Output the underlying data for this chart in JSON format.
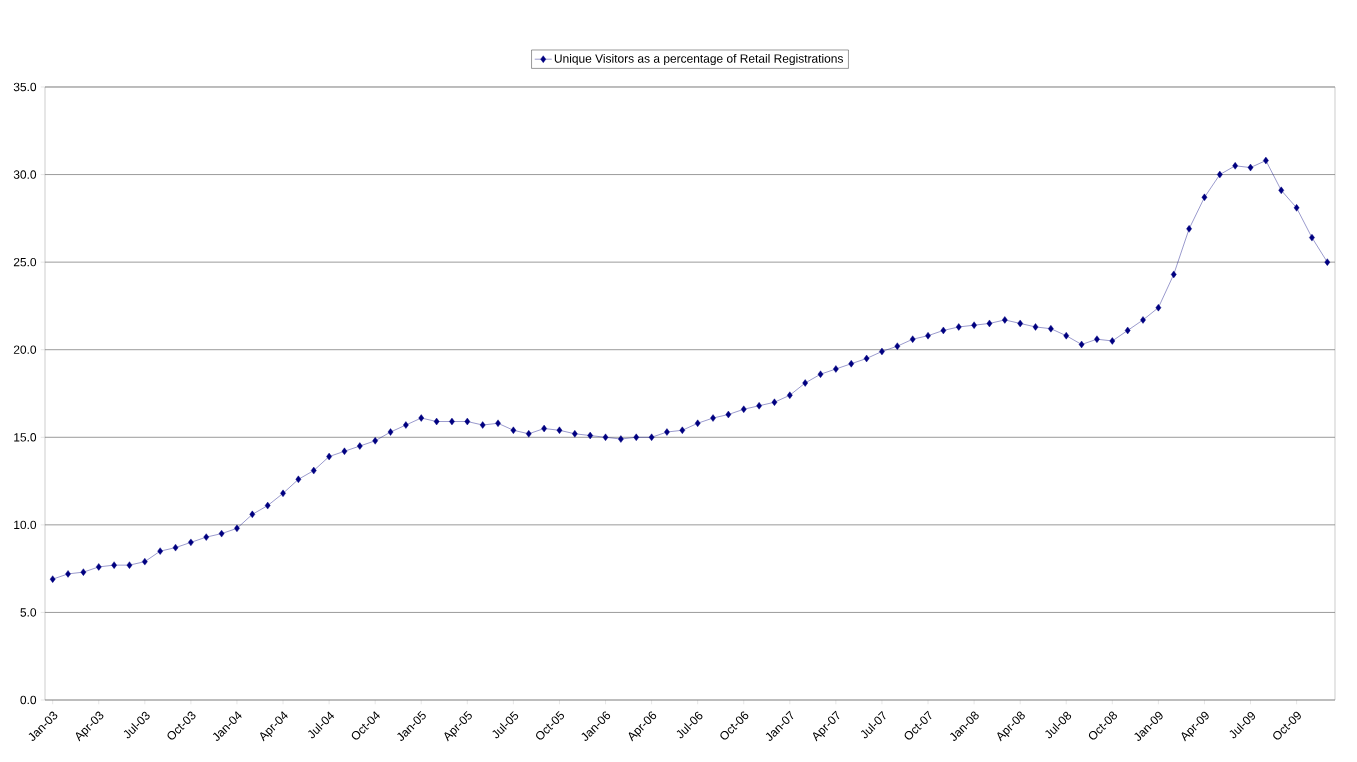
{
  "chart_data": {
    "type": "line",
    "categories": [
      "Jan-03",
      null,
      null,
      "Apr-03",
      null,
      null,
      "Jul-03",
      null,
      null,
      "Oct-03",
      null,
      null,
      "Jan-04",
      null,
      null,
      "Apr-04",
      null,
      null,
      "Jul-04",
      null,
      null,
      "Oct-04",
      null,
      null,
      "Jan-05",
      null,
      null,
      "Apr-05",
      null,
      null,
      "Jul-05",
      null,
      null,
      "Oct-05",
      null,
      null,
      "Jan-06",
      null,
      null,
      "Apr-06",
      null,
      null,
      "Jul-06",
      null,
      null,
      "Oct-06",
      null,
      null,
      "Jan-07",
      null,
      null,
      "Apr-07",
      null,
      null,
      "Jul-07",
      null,
      null,
      "Oct-07",
      null,
      null,
      "Jan-08",
      null,
      null,
      "Apr-08",
      null,
      null,
      "Jul-08",
      null,
      null,
      "Oct-08",
      null,
      null,
      "Jan-09",
      null,
      null,
      "Apr-09",
      null,
      null,
      "Jul-09",
      null,
      null,
      "Oct-09",
      null,
      null
    ],
    "series": [
      {
        "name": "Unique Visitors as a percentage of Retail Registrations",
        "color": "#000080",
        "values": [
          6.9,
          7.2,
          7.3,
          7.6,
          7.7,
          7.7,
          7.9,
          8.5,
          8.7,
          9.0,
          9.3,
          9.5,
          9.8,
          10.6,
          11.1,
          11.8,
          12.6,
          13.1,
          13.9,
          14.2,
          14.5,
          14.8,
          15.3,
          15.7,
          16.1,
          15.9,
          15.9,
          15.9,
          15.7,
          15.8,
          15.4,
          15.2,
          15.5,
          15.4,
          15.2,
          15.1,
          15.0,
          14.9,
          15.0,
          15.0,
          15.3,
          15.4,
          15.8,
          16.1,
          16.3,
          16.6,
          16.8,
          17.0,
          17.4,
          18.1,
          18.6,
          18.9,
          19.2,
          19.5,
          19.9,
          20.2,
          20.6,
          20.8,
          21.1,
          21.3,
          21.4,
          21.5,
          21.7,
          21.5,
          21.3,
          21.2,
          20.8,
          20.3,
          20.6,
          20.5,
          21.1,
          21.7,
          22.4,
          24.3,
          26.9,
          28.7,
          30.0,
          30.5,
          30.4,
          30.8,
          29.1,
          28.1,
          26.4,
          25.0
        ]
      }
    ],
    "ylim": [
      0,
      35
    ],
    "yticks": [
      {
        "value": 0,
        "label": "0.0"
      },
      {
        "value": 5,
        "label": "5.0"
      },
      {
        "value": 10,
        "label": "10.0"
      },
      {
        "value": 15,
        "label": "15.0"
      },
      {
        "value": 20,
        "label": "20.0"
      },
      {
        "value": 25,
        "label": "25.0"
      },
      {
        "value": 30,
        "label": "30.0"
      },
      {
        "value": 35,
        "label": "35.0"
      }
    ],
    "grid": "y",
    "legend": "top",
    "marker": "diamond",
    "line_style": "solid"
  }
}
